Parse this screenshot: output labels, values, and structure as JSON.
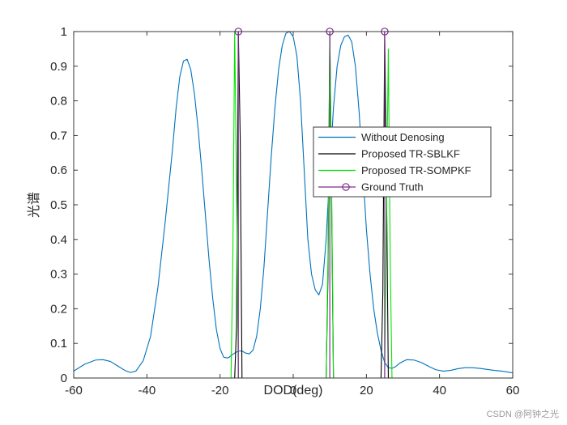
{
  "chart_data": {
    "type": "line",
    "xlabel": "DOD(deg)",
    "ylabel": "光谱",
    "xlim": [
      -60,
      60
    ],
    "ylim": [
      0,
      1
    ],
    "xticks": [
      -60,
      -40,
      -20,
      0,
      20,
      40,
      60
    ],
    "yticks": [
      0,
      0.1,
      0.2,
      0.3,
      0.4,
      0.5,
      0.6,
      0.7,
      0.8,
      0.9,
      1
    ],
    "grid": false,
    "box": true,
    "legend_position": "right-middle",
    "series": [
      {
        "name": "Without Denosing",
        "color": "#0072BD",
        "marker": "none",
        "x": [
          -60,
          -57,
          -54,
          -52,
          -50,
          -48,
          -46,
          -44.5,
          -43,
          -41,
          -39,
          -37,
          -35,
          -33,
          -32,
          -31,
          -30,
          -29,
          -28,
          -27,
          -26,
          -25,
          -24,
          -23,
          -22,
          -21,
          -20,
          -19,
          -18,
          -17.5,
          -17,
          -16,
          -15,
          -14,
          -13,
          -12,
          -11,
          -10,
          -9,
          -8,
          -7,
          -6,
          -5,
          -4,
          -3,
          -2,
          -1,
          0,
          1,
          2,
          3,
          4,
          5,
          6,
          7,
          8,
          9,
          10,
          11,
          12,
          13,
          14,
          15,
          16,
          17,
          18,
          19,
          20,
          21,
          22,
          23,
          24,
          25,
          26,
          27,
          28,
          29,
          30,
          31,
          33,
          35,
          37,
          39,
          41,
          43,
          45,
          47,
          49,
          51,
          53,
          55,
          57,
          60
        ],
        "y": [
          0.02,
          0.04,
          0.052,
          0.053,
          0.048,
          0.035,
          0.022,
          0.016,
          0.02,
          0.05,
          0.12,
          0.26,
          0.45,
          0.66,
          0.78,
          0.87,
          0.915,
          0.92,
          0.89,
          0.82,
          0.72,
          0.6,
          0.47,
          0.34,
          0.23,
          0.14,
          0.085,
          0.06,
          0.058,
          0.06,
          0.065,
          0.072,
          0.078,
          0.078,
          0.072,
          0.07,
          0.08,
          0.12,
          0.2,
          0.32,
          0.48,
          0.64,
          0.78,
          0.89,
          0.96,
          0.995,
          1.0,
          0.985,
          0.93,
          0.8,
          0.6,
          0.4,
          0.3,
          0.255,
          0.24,
          0.27,
          0.4,
          0.6,
          0.78,
          0.9,
          0.96,
          0.985,
          0.99,
          0.97,
          0.9,
          0.77,
          0.6,
          0.43,
          0.3,
          0.2,
          0.13,
          0.08,
          0.045,
          0.03,
          0.028,
          0.033,
          0.042,
          0.048,
          0.053,
          0.052,
          0.045,
          0.034,
          0.024,
          0.02,
          0.022,
          0.027,
          0.03,
          0.03,
          0.028,
          0.025,
          0.022,
          0.02,
          0.015
        ]
      },
      {
        "name": "Proposed TR-SBLKF",
        "color": "#000000",
        "marker": "none",
        "x": [
          -60,
          -16,
          -15.5,
          -15,
          -14.5,
          -14,
          9,
          9.5,
          10,
          10.5,
          11,
          24,
          24.5,
          25,
          25.5,
          26,
          60
        ],
        "y": [
          0,
          0,
          0.15,
          1.0,
          0.7,
          0,
          0,
          0.3,
          1.0,
          0.5,
          0,
          0,
          0.25,
          1.0,
          0.55,
          0,
          0
        ]
      },
      {
        "name": "Proposed TR-SOMPKF",
        "color": "#00E600",
        "marker": "none",
        "x": [
          -60,
          -17,
          -16.5,
          -16,
          -15.5,
          -15,
          9,
          9.5,
          10,
          10.5,
          11,
          25,
          25.5,
          26,
          26.5,
          27,
          60
        ],
        "y": [
          0,
          0,
          0.35,
          1.0,
          0.55,
          0,
          0,
          0.35,
          1.0,
          0.55,
          0,
          0,
          0.5,
          0.95,
          0.35,
          0,
          0
        ]
      },
      {
        "name": "Ground Truth",
        "color": "#7E2F8E",
        "marker": "circle",
        "x": [
          -15,
          10,
          25
        ],
        "y": [
          1,
          1,
          1
        ],
        "stems": true
      }
    ]
  },
  "watermark": "CSDN @阿钟之光"
}
